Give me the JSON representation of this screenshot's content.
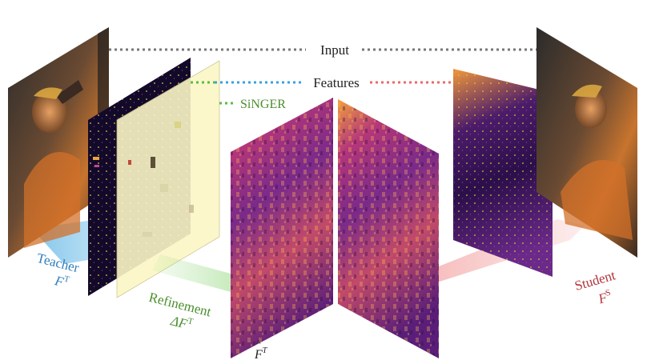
{
  "legend": {
    "input": "Input",
    "features": "Features",
    "singer": "SiNGER"
  },
  "labels": {
    "teacher_name": "Teacher",
    "teacher_sym": "F",
    "teacher_sup": "T",
    "student_name": "Student",
    "student_sym": "F",
    "student_sup": "S",
    "refinement_name": "Refinement",
    "refinement_sym": "ΔF",
    "refinement_sup": "T",
    "refined_sym": "F",
    "refined_sup": "T",
    "refined_accent": "^"
  },
  "colors": {
    "teacher": "#2f7fbd",
    "student": "#b3343b",
    "refinement": "#4b8f2e",
    "input_line": "#777777",
    "teacher_line": "#3aa0e0",
    "singer_line": "#5bbd3f",
    "student_line": "#e86a6a",
    "teacher_arrow": "#7cc3ea",
    "refine_arrow": "#9fdc8a",
    "student_arrow": "#f4a6a6",
    "overlay": "#fbf7c6"
  }
}
